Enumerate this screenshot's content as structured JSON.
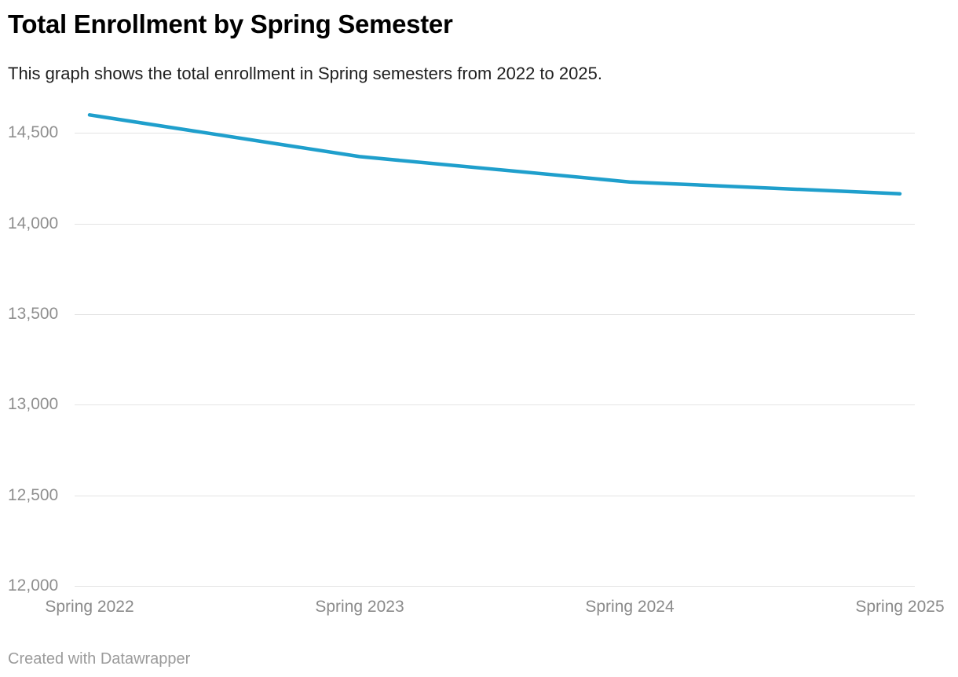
{
  "header": {
    "title": "Total Enrollment by Spring Semester",
    "subtitle": "This graph shows the total enrollment in Spring semesters from 2022 to 2025."
  },
  "footer": {
    "attribution": "Created with Datawrapper"
  },
  "colors": {
    "line": "#1f9fcc",
    "gridline": "#e4e4e4",
    "axis_label": "#8f8f8f",
    "title": "#000000",
    "subtitle": "#1f1f1f",
    "attribution": "#9b9b9b",
    "background": "#ffffff"
  },
  "chart_data": {
    "type": "line",
    "title": "Total Enrollment by Spring Semester",
    "subtitle": "This graph shows the total enrollment in Spring semesters from 2022 to 2025.",
    "series": [
      {
        "name": "Total enrollment",
        "values": [
          14600,
          14370,
          14230,
          14165
        ]
      }
    ],
    "categories": [
      "Spring 2022",
      "Spring 2023",
      "Spring 2024",
      "Spring 2025"
    ],
    "xlabel": "",
    "ylabel": "",
    "ylim": [
      12000,
      14500
    ],
    "y_ticks": [
      12000,
      12500,
      13000,
      13500,
      14000,
      14500
    ],
    "y_tick_labels": [
      "12,000",
      "12,500",
      "13,000",
      "13,500",
      "14,000",
      "14,500"
    ],
    "grid": true,
    "legend_position": "none",
    "line_color": "#1f9fcc"
  }
}
